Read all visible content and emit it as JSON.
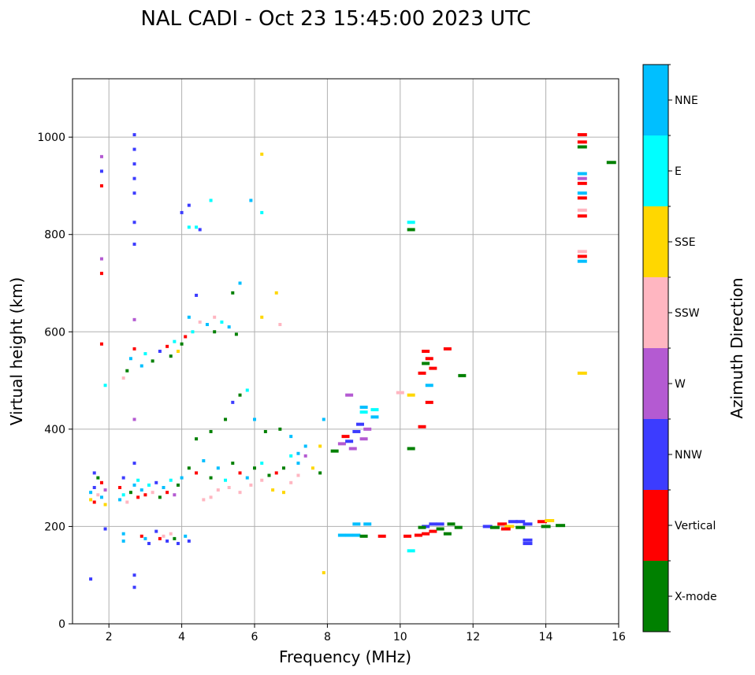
{
  "chart_data": {
    "type": "scatter",
    "title": "NAL CADI - Oct 23 15:45:00 2023 UTC",
    "xlabel": "Frequency (MHz)",
    "ylabel": "Virtual height (km)",
    "xlim": [
      1,
      16
    ],
    "ylim": [
      0,
      1120
    ],
    "xticks": [
      2,
      4,
      6,
      8,
      10,
      12,
      14,
      16
    ],
    "yticks": [
      0,
      200,
      400,
      600,
      800,
      1000
    ],
    "grid": true,
    "colorbar": {
      "label": "Azimuth Direction",
      "categories": [
        {
          "name": "X-mode",
          "color": "#008000"
        },
        {
          "name": "Vertical",
          "color": "#ff0000"
        },
        {
          "name": "NNW",
          "color": "#3c3cff"
        },
        {
          "name": "W",
          "color": "#b45ad2"
        },
        {
          "name": "SSW",
          "color": "#ffb6c1"
        },
        {
          "name": "SSE",
          "color": "#ffd700"
        },
        {
          "name": "E",
          "color": "#00ffff"
        },
        {
          "name": "NNE",
          "color": "#00bfff"
        }
      ]
    },
    "points": [
      [
        1.5,
        255,
        "SSE"
      ],
      [
        1.5,
        270,
        "NNE"
      ],
      [
        1.6,
        250,
        "Vertical"
      ],
      [
        1.6,
        280,
        "NNW"
      ],
      [
        1.7,
        265,
        "SSW"
      ],
      [
        1.7,
        300,
        "X-mode"
      ],
      [
        1.8,
        260,
        "NNE"
      ],
      [
        1.8,
        290,
        "Vertical"
      ],
      [
        1.9,
        245,
        "SSE"
      ],
      [
        1.9,
        275,
        "W"
      ],
      [
        1.5,
        92,
        "NNW"
      ],
      [
        1.6,
        310,
        "NNW"
      ],
      [
        1.9,
        195,
        "NNW"
      ],
      [
        1.9,
        490,
        "E"
      ],
      [
        1.8,
        960,
        "W"
      ],
      [
        1.8,
        930,
        "NNW"
      ],
      [
        1.8,
        900,
        "Vertical"
      ],
      [
        1.8,
        750,
        "W"
      ],
      [
        1.8,
        720,
        "Vertical"
      ],
      [
        1.8,
        575,
        "Vertical"
      ],
      [
        2.3,
        255,
        "NNE"
      ],
      [
        2.3,
        280,
        "Vertical"
      ],
      [
        2.4,
        265,
        "E"
      ],
      [
        2.4,
        300,
        "NNW"
      ],
      [
        2.5,
        250,
        "SSW"
      ],
      [
        2.6,
        270,
        "X-mode"
      ],
      [
        2.7,
        285,
        "NNE"
      ],
      [
        2.8,
        260,
        "Vertical"
      ],
      [
        2.8,
        295,
        "E"
      ],
      [
        2.9,
        275,
        "NNE"
      ],
      [
        3.0,
        265,
        "Vertical"
      ],
      [
        3.1,
        285,
        "E"
      ],
      [
        3.2,
        270,
        "SSW"
      ],
      [
        3.3,
        290,
        "NNW"
      ],
      [
        3.4,
        260,
        "X-mode"
      ],
      [
        3.5,
        280,
        "NNE"
      ],
      [
        3.6,
        270,
        "Vertical"
      ],
      [
        3.7,
        295,
        "E"
      ],
      [
        3.8,
        265,
        "W"
      ],
      [
        3.9,
        285,
        "X-mode"
      ],
      [
        2.4,
        185,
        "NNE"
      ],
      [
        2.4,
        170,
        "NNE"
      ],
      [
        2.9,
        180,
        "Vertical"
      ],
      [
        3.0,
        175,
        "NNE"
      ],
      [
        3.1,
        165,
        "NNW"
      ],
      [
        3.3,
        190,
        "NNW"
      ],
      [
        3.4,
        175,
        "Vertical"
      ],
      [
        3.5,
        180,
        "SSW"
      ],
      [
        3.6,
        170,
        "NNW"
      ],
      [
        3.7,
        185,
        "SSW"
      ],
      [
        3.8,
        175,
        "X-mode"
      ],
      [
        3.9,
        165,
        "NNW"
      ],
      [
        4.1,
        180,
        "NNE"
      ],
      [
        4.2,
        170,
        "NNW"
      ],
      [
        2.7,
        1005,
        "NNW"
      ],
      [
        2.7,
        975,
        "NNW"
      ],
      [
        2.7,
        945,
        "NNW"
      ],
      [
        2.7,
        915,
        "NNW"
      ],
      [
        2.7,
        885,
        "NNW"
      ],
      [
        2.7,
        825,
        "NNW"
      ],
      [
        2.7,
        780,
        "NNW"
      ],
      [
        2.7,
        625,
        "W"
      ],
      [
        2.7,
        565,
        "Vertical"
      ],
      [
        2.7,
        420,
        "W"
      ],
      [
        2.7,
        330,
        "NNW"
      ],
      [
        2.7,
        100,
        "NNW"
      ],
      [
        2.7,
        75,
        "NNW"
      ],
      [
        2.4,
        505,
        "SSW"
      ],
      [
        2.5,
        520,
        "X-mode"
      ],
      [
        2.6,
        545,
        "NNE"
      ],
      [
        2.9,
        530,
        "NNE"
      ],
      [
        3.0,
        555,
        "E"
      ],
      [
        3.2,
        540,
        "X-mode"
      ],
      [
        3.4,
        560,
        "NNW"
      ],
      [
        3.6,
        570,
        "Vertical"
      ],
      [
        3.8,
        580,
        "E"
      ],
      [
        4.0,
        575,
        "X-mode"
      ],
      [
        4.1,
        590,
        "Vertical"
      ],
      [
        3.7,
        550,
        "X-mode"
      ],
      [
        3.9,
        560,
        "SSE"
      ],
      [
        4.2,
        630,
        "NNE"
      ],
      [
        4.3,
        600,
        "E"
      ],
      [
        4.5,
        620,
        "SSW"
      ],
      [
        4.7,
        615,
        "NNE"
      ],
      [
        4.9,
        600,
        "X-mode"
      ],
      [
        5.1,
        620,
        "E"
      ],
      [
        5.3,
        610,
        "NNE"
      ],
      [
        5.5,
        595,
        "X-mode"
      ],
      [
        5.6,
        700,
        "NNE"
      ],
      [
        5.4,
        680,
        "X-mode"
      ],
      [
        4.9,
        630,
        "SSW"
      ],
      [
        4.0,
        845,
        "NNW"
      ],
      [
        4.2,
        860,
        "NNW"
      ],
      [
        4.2,
        815,
        "E"
      ],
      [
        4.4,
        815,
        "E"
      ],
      [
        4.5,
        810,
        "NNW"
      ],
      [
        4.8,
        870,
        "E"
      ],
      [
        5.9,
        870,
        "NNE"
      ],
      [
        6.2,
        965,
        "SSE"
      ],
      [
        6.2,
        845,
        "E"
      ],
      [
        4.4,
        675,
        "NNW"
      ],
      [
        6.6,
        680,
        "SSE"
      ],
      [
        6.2,
        630,
        "SSE"
      ],
      [
        6.7,
        615,
        "SSW"
      ],
      [
        4.0,
        300,
        "NNE"
      ],
      [
        4.2,
        320,
        "X-mode"
      ],
      [
        4.4,
        310,
        "Vertical"
      ],
      [
        4.6,
        335,
        "NNE"
      ],
      [
        4.8,
        300,
        "X-mode"
      ],
      [
        5.0,
        320,
        "NNE"
      ],
      [
        5.2,
        295,
        "E"
      ],
      [
        5.4,
        330,
        "X-mode"
      ],
      [
        5.6,
        310,
        "Vertical"
      ],
      [
        5.8,
        300,
        "NNE"
      ],
      [
        6.0,
        320,
        "X-mode"
      ],
      [
        6.2,
        330,
        "E"
      ],
      [
        4.4,
        380,
        "X-mode"
      ],
      [
        4.8,
        395,
        "X-mode"
      ],
      [
        5.2,
        420,
        "X-mode"
      ],
      [
        5.4,
        455,
        "NNW"
      ],
      [
        5.6,
        470,
        "X-mode"
      ],
      [
        5.8,
        480,
        "E"
      ],
      [
        6.0,
        420,
        "NNE"
      ],
      [
        6.3,
        395,
        "X-mode"
      ],
      [
        6.7,
        400,
        "X-mode"
      ],
      [
        7.0,
        385,
        "NNE"
      ],
      [
        7.2,
        350,
        "NNE"
      ],
      [
        4.6,
        255,
        "SSW"
      ],
      [
        4.8,
        260,
        "SSW"
      ],
      [
        5.0,
        275,
        "SSW"
      ],
      [
        5.3,
        280,
        "SSW"
      ],
      [
        5.6,
        270,
        "SSW"
      ],
      [
        5.9,
        285,
        "SSW"
      ],
      [
        6.2,
        295,
        "SSW"
      ],
      [
        6.5,
        275,
        "SSE"
      ],
      [
        6.8,
        270,
        "SSE"
      ],
      [
        7.0,
        290,
        "SSW"
      ],
      [
        7.2,
        305,
        "SSW"
      ],
      [
        6.4,
        305,
        "X-mode"
      ],
      [
        6.6,
        310,
        "Vertical"
      ],
      [
        6.8,
        320,
        "X-mode"
      ],
      [
        7.0,
        345,
        "E"
      ],
      [
        7.2,
        330,
        "NNE"
      ],
      [
        7.4,
        345,
        "W"
      ],
      [
        7.6,
        320,
        "SSE"
      ],
      [
        7.8,
        310,
        "X-mode"
      ],
      [
        7.8,
        365,
        "SSE"
      ],
      [
        7.9,
        420,
        "NNE"
      ],
      [
        7.4,
        365,
        "NNE"
      ],
      [
        8.2,
        355,
        "X-mode"
      ],
      [
        8.4,
        370,
        "W"
      ],
      [
        8.5,
        385,
        "Vertical"
      ],
      [
        8.6,
        375,
        "NNW"
      ],
      [
        8.8,
        395,
        "NNW"
      ],
      [
        8.9,
        410,
        "NNW"
      ],
      [
        9.0,
        380,
        "W"
      ],
      [
        9.1,
        400,
        "W"
      ],
      [
        8.7,
        360,
        "W"
      ],
      [
        9.0,
        435,
        "E"
      ],
      [
        9.3,
        440,
        "E"
      ],
      [
        9.3,
        425,
        "NNE"
      ],
      [
        9.0,
        445,
        "NNE"
      ],
      [
        8.6,
        470,
        "W"
      ],
      [
        8.4,
        182,
        "NNE"
      ],
      [
        8.6,
        182,
        "NNE"
      ],
      [
        8.8,
        182,
        "NNE"
      ],
      [
        9.0,
        180,
        "X-mode"
      ],
      [
        8.8,
        205,
        "NNE"
      ],
      [
        9.1,
        205,
        "NNE"
      ],
      [
        9.5,
        180,
        "Vertical"
      ],
      [
        7.9,
        105,
        "SSE"
      ],
      [
        10.0,
        475,
        "SSW"
      ],
      [
        10.3,
        470,
        "SSE"
      ],
      [
        10.6,
        515,
        "Vertical"
      ],
      [
        10.7,
        535,
        "X-mode"
      ],
      [
        10.8,
        545,
        "Vertical"
      ],
      [
        10.8,
        490,
        "NNE"
      ],
      [
        10.9,
        525,
        "Vertical"
      ],
      [
        10.7,
        560,
        "Vertical"
      ],
      [
        10.8,
        455,
        "Vertical"
      ],
      [
        11.3,
        565,
        "Vertical"
      ],
      [
        11.7,
        510,
        "X-mode"
      ],
      [
        10.6,
        405,
        "Vertical"
      ],
      [
        10.3,
        360,
        "X-mode"
      ],
      [
        10.3,
        825,
        "E"
      ],
      [
        10.3,
        810,
        "X-mode"
      ],
      [
        10.5,
        182,
        "Vertical"
      ],
      [
        10.7,
        185,
        "Vertical"
      ],
      [
        10.9,
        190,
        "Vertical"
      ],
      [
        10.7,
        200,
        "NNW"
      ],
      [
        10.9,
        205,
        "NNW"
      ],
      [
        11.1,
        195,
        "X-mode"
      ],
      [
        11.3,
        185,
        "X-mode"
      ],
      [
        11.1,
        205,
        "NNW"
      ],
      [
        11.4,
        205,
        "X-mode"
      ],
      [
        10.3,
        150,
        "E"
      ],
      [
        10.2,
        180,
        "Vertical"
      ],
      [
        10.6,
        198,
        "X-mode"
      ],
      [
        11.6,
        198,
        "X-mode"
      ],
      [
        12.4,
        200,
        "NNW"
      ],
      [
        12.6,
        198,
        "X-mode"
      ],
      [
        12.8,
        205,
        "Vertical"
      ],
      [
        13.0,
        200,
        "SSE"
      ],
      [
        13.1,
        210,
        "NNW"
      ],
      [
        13.3,
        198,
        "X-mode"
      ],
      [
        13.5,
        205,
        "NNW"
      ],
      [
        12.9,
        195,
        "Vertical"
      ],
      [
        13.3,
        210,
        "NNW"
      ],
      [
        13.5,
        172,
        "NNW"
      ],
      [
        13.5,
        165,
        "NNW"
      ],
      [
        13.9,
        210,
        "Vertical"
      ],
      [
        14.0,
        200,
        "X-mode"
      ],
      [
        14.1,
        212,
        "SSE"
      ],
      [
        14.4,
        202,
        "X-mode"
      ],
      [
        15.0,
        1005,
        "Vertical"
      ],
      [
        15.0,
        990,
        "Vertical"
      ],
      [
        15.0,
        980,
        "X-mode"
      ],
      [
        15.0,
        925,
        "NNE"
      ],
      [
        15.0,
        915,
        "W"
      ],
      [
        15.0,
        905,
        "Vertical"
      ],
      [
        15.0,
        885,
        "NNE"
      ],
      [
        15.0,
        875,
        "Vertical"
      ],
      [
        15.0,
        850,
        "SSW"
      ],
      [
        15.0,
        838,
        "Vertical"
      ],
      [
        15.0,
        765,
        "SSW"
      ],
      [
        15.0,
        755,
        "Vertical"
      ],
      [
        15.0,
        745,
        "NNE"
      ],
      [
        15.0,
        515,
        "SSE"
      ],
      [
        15.8,
        948,
        "X-mode"
      ]
    ]
  }
}
